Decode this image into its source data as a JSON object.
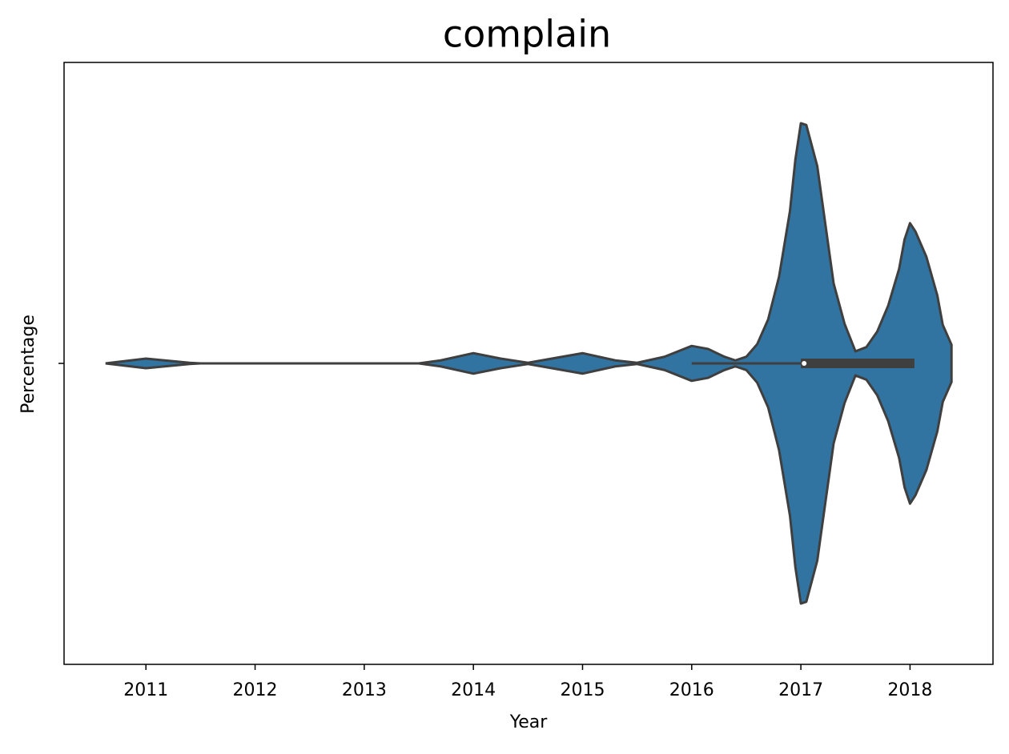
{
  "chart_data": {
    "type": "violin",
    "title": "complain",
    "x_label": "Year",
    "y_label": "Percentage",
    "color": "#3274a1",
    "edge_color": "#3f3f3f",
    "density_x": [
      2010.63,
      2011.0,
      2011.4,
      2011.5,
      2013.5,
      2013.7,
      2014.0,
      2014.25,
      2014.5,
      2015.0,
      2015.3,
      2015.5,
      2015.75,
      2016.0,
      2016.15,
      2016.3,
      2016.4,
      2016.5,
      2016.6,
      2016.7,
      2016.8,
      2016.9,
      2016.95,
      2017.0,
      2017.05,
      2017.15,
      2017.3,
      2017.4,
      2017.5,
      2017.6,
      2017.7,
      2017.8,
      2017.9,
      2017.95,
      2018.0,
      2018.05,
      2018.15,
      2018.25,
      2018.3,
      2018.38
    ],
    "density": [
      0,
      0.008,
      0.001,
      0,
      0,
      0.005,
      0.017,
      0.008,
      0.001,
      0.017,
      0.005,
      0.001,
      0.011,
      0.029,
      0.024,
      0.011,
      0.005,
      0.011,
      0.032,
      0.073,
      0.144,
      0.253,
      0.339,
      0.399,
      0.396,
      0.328,
      0.133,
      0.066,
      0.02,
      0.027,
      0.053,
      0.096,
      0.157,
      0.206,
      0.233,
      0.219,
      0.177,
      0.113,
      0.064,
      0.031
    ],
    "box": {
      "whisker_low": 2016.0,
      "q1": 2017.0,
      "median": 2017.03,
      "q3": 2018.04,
      "whisker_high": 2018.04
    },
    "xlim": [
      2010.25,
      2018.76
    ],
    "xticks": [
      2011,
      2012,
      2013,
      2014,
      2015,
      2016,
      2017,
      2018
    ],
    "ylim": [
      0.5,
      -0.5
    ],
    "yticks": [
      0
    ]
  }
}
